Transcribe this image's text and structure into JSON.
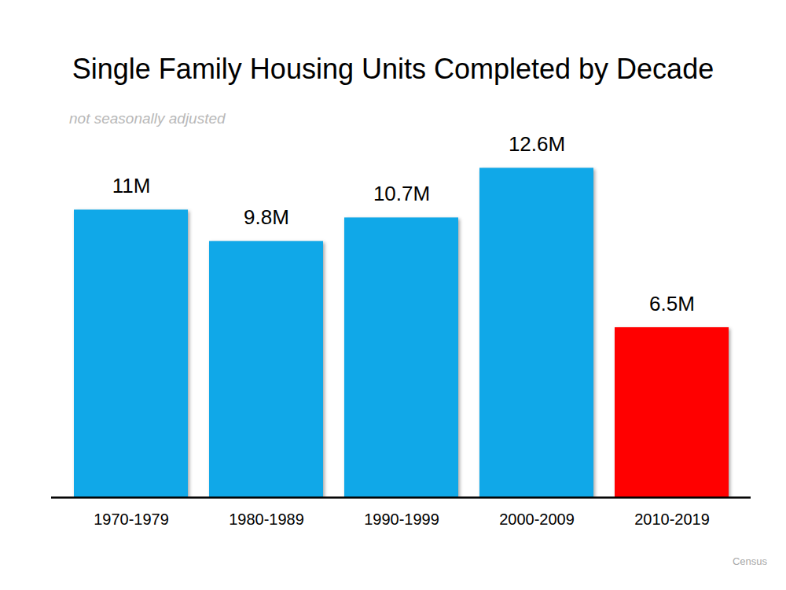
{
  "chart_data": {
    "type": "bar",
    "title": "Single Family Housing Units Completed by Decade",
    "subtitle": "not seasonally adjusted",
    "source": "Census",
    "categories": [
      "1970-1979",
      "1980-1989",
      "1990-1999",
      "2000-2009",
      "2010-2019"
    ],
    "values": [
      11,
      9.8,
      10.7,
      12.6,
      6.5
    ],
    "value_labels": [
      "11M",
      "9.8M",
      "10.7M",
      "12.6M",
      "6.5M"
    ],
    "colors": [
      "#10a8e8",
      "#10a8e8",
      "#10a8e8",
      "#10a8e8",
      "#ff0000"
    ],
    "ylim": [
      0,
      13
    ],
    "grid": false,
    "data_labels": true,
    "tick_labels": "x"
  }
}
